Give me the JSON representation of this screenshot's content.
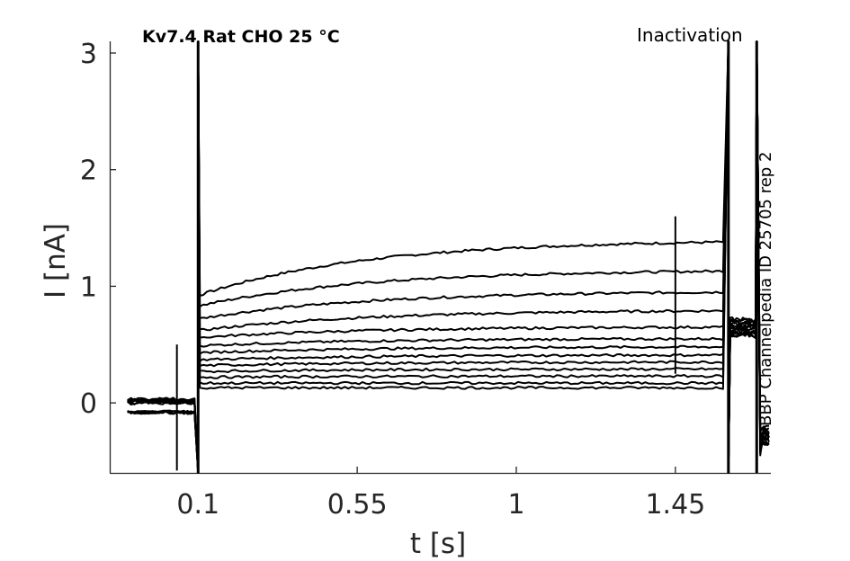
{
  "chart_data": {
    "type": "line",
    "title": "Kv7.4  Rat  CHO  25 °C",
    "protocol": "Inactivation",
    "side_label": "BBP Channelpedia ID 25705 rep 2",
    "xlabel": "t [s]",
    "ylabel": "I [nA]",
    "xlim": [
      -0.15,
      1.72
    ],
    "ylim": [
      -0.6,
      3.1
    ],
    "xticks": [
      0.1,
      0.55,
      1,
      1.45
    ],
    "xtick_labels": [
      "0.1",
      "0.55",
      "1",
      "1.45"
    ],
    "yticks": [
      0,
      1,
      2,
      3
    ],
    "ytick_labels": [
      "0",
      "1",
      "2",
      "3"
    ],
    "grid": false,
    "pulse_window": [
      0.1,
      1.6
    ],
    "baseline_current": 0.0,
    "tail_current": 0.65,
    "series": [
      {
        "start": 0.92,
        "end": 1.38
      },
      {
        "start": 0.83,
        "end": 1.13
      },
      {
        "start": 0.72,
        "end": 0.95
      },
      {
        "start": 0.62,
        "end": 0.79
      },
      {
        "start": 0.56,
        "end": 0.65
      },
      {
        "start": 0.49,
        "end": 0.55
      },
      {
        "start": 0.43,
        "end": 0.48
      },
      {
        "start": 0.37,
        "end": 0.41
      },
      {
        "start": 0.32,
        "end": 0.35
      },
      {
        "start": 0.27,
        "end": 0.29
      },
      {
        "start": 0.22,
        "end": 0.23
      },
      {
        "start": 0.17,
        "end": 0.17
      },
      {
        "start": 0.13,
        "end": 0.13
      }
    ]
  }
}
